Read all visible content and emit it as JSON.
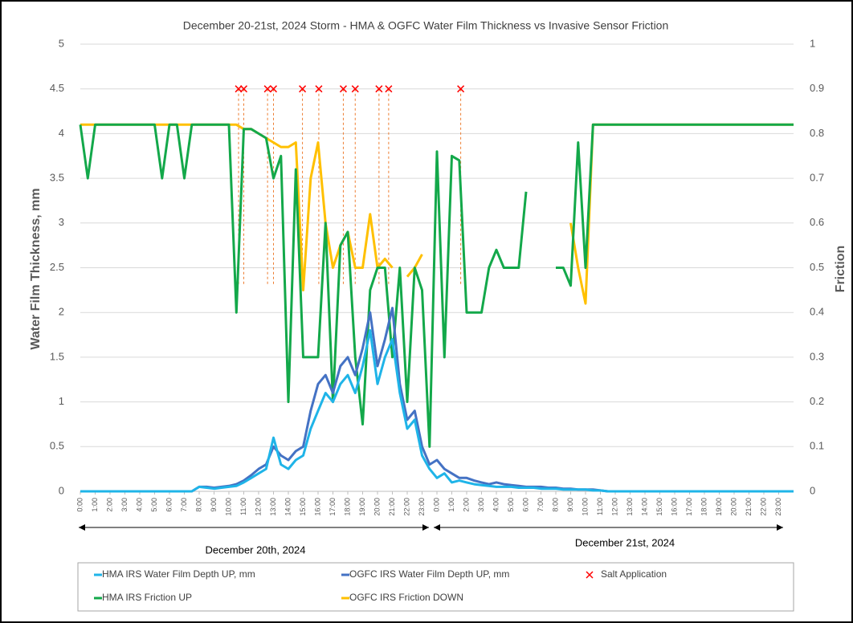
{
  "chart_data": {
    "type": "line",
    "title": "December 20-21st, 2024 Storm - HMA & OGFC Water Film Thickness vs Invasive Sensor Friction",
    "ylabel": "Water Film Thickness, mm",
    "y2label": "Friction",
    "annotations": [
      "December 20th, 2024",
      "December 21st, 2024"
    ],
    "x": [
      0,
      0.5,
      1,
      1.5,
      2,
      2.5,
      3,
      3.5,
      4,
      4.5,
      5,
      5.5,
      6,
      6.5,
      7,
      7.5,
      8,
      8.5,
      9,
      9.5,
      10,
      10.5,
      11,
      11.5,
      12,
      12.5,
      13,
      13.5,
      14,
      14.5,
      15,
      15.5,
      16,
      16.5,
      17,
      17.5,
      18,
      18.5,
      19,
      19.5,
      20,
      20.5,
      21,
      21.5,
      22,
      22.5,
      23,
      23.5,
      24,
      24.5,
      25,
      25.5,
      26,
      26.5,
      27,
      27.5,
      28,
      28.5,
      29,
      29.5,
      30,
      30.5,
      31,
      31.5,
      32,
      32.5,
      33,
      33.5,
      34,
      34.5,
      35,
      35.5,
      36,
      36.5,
      37,
      37.5,
      38,
      38.5,
      39,
      39.5,
      40,
      40.5,
      41,
      41.5,
      42,
      42.5,
      43,
      43.5,
      44,
      44.5,
      45,
      45.5,
      46,
      46.5,
      47,
      47.5,
      48
    ],
    "xlim": [
      0,
      48
    ],
    "xticks": [
      {
        "value": 0,
        "label": "0:00"
      },
      {
        "value": 1,
        "label": "1:00"
      },
      {
        "value": 2,
        "label": "2:00"
      },
      {
        "value": 3,
        "label": "3:00"
      },
      {
        "value": 4,
        "label": "4:00"
      },
      {
        "value": 5,
        "label": "5:00"
      },
      {
        "value": 6,
        "label": "6:00"
      },
      {
        "value": 7,
        "label": "7:00"
      },
      {
        "value": 8,
        "label": "8:00"
      },
      {
        "value": 9,
        "label": "9:00"
      },
      {
        "value": 10,
        "label": "10:00"
      },
      {
        "value": 11,
        "label": "11:00"
      },
      {
        "value": 12,
        "label": "12:00"
      },
      {
        "value": 13,
        "label": "13:00"
      },
      {
        "value": 14,
        "label": "14:00"
      },
      {
        "value": 15,
        "label": "15:00"
      },
      {
        "value": 16,
        "label": "16:00"
      },
      {
        "value": 17,
        "label": "17:00"
      },
      {
        "value": 18,
        "label": "18:00"
      },
      {
        "value": 19,
        "label": "19:00"
      },
      {
        "value": 20,
        "label": "20:00"
      },
      {
        "value": 21,
        "label": "21:00"
      },
      {
        "value": 22,
        "label": "22:00"
      },
      {
        "value": 23,
        "label": "23:00"
      },
      {
        "value": 24,
        "label": "0:00"
      },
      {
        "value": 25,
        "label": "1:00"
      },
      {
        "value": 26,
        "label": "2:00"
      },
      {
        "value": 27,
        "label": "3:00"
      },
      {
        "value": 28,
        "label": "4:00"
      },
      {
        "value": 29,
        "label": "5:00"
      },
      {
        "value": 30,
        "label": "6:00"
      },
      {
        "value": 31,
        "label": "7:00"
      },
      {
        "value": 32,
        "label": "8:00"
      },
      {
        "value": 33,
        "label": "9:00"
      },
      {
        "value": 34,
        "label": "10:00"
      },
      {
        "value": 35,
        "label": "11:00"
      },
      {
        "value": 36,
        "label": "12:00"
      },
      {
        "value": 37,
        "label": "13:00"
      },
      {
        "value": 38,
        "label": "14:00"
      },
      {
        "value": 39,
        "label": "15:00"
      },
      {
        "value": 40,
        "label": "16:00"
      },
      {
        "value": 41,
        "label": "17:00"
      },
      {
        "value": 42,
        "label": "18:00"
      },
      {
        "value": 43,
        "label": "19:00"
      },
      {
        "value": 44,
        "label": "20:00"
      },
      {
        "value": 45,
        "label": "21:00"
      },
      {
        "value": 46,
        "label": "22:00"
      },
      {
        "value": 47,
        "label": "23:00"
      }
    ],
    "ylim": [
      0,
      5
    ],
    "yticks": [
      0,
      0.5,
      1,
      1.5,
      2,
      2.5,
      3,
      3.5,
      4,
      4.5,
      5
    ],
    "y2lim": [
      0,
      1
    ],
    "y2ticks": [
      0,
      0.1,
      0.2,
      0.3,
      0.4,
      0.5,
      0.6,
      0.7,
      0.8,
      0.9,
      1
    ],
    "series": [
      {
        "name": "HMA IRS  Water Film Depth UP, mm",
        "color": "#1fb4e8",
        "values": [
          0,
          0,
          0,
          0,
          0,
          0,
          0,
          0,
          0,
          0,
          0,
          0,
          0,
          0,
          0,
          0,
          0.05,
          0.04,
          0.03,
          0.04,
          0.05,
          0.06,
          0.1,
          0.15,
          0.2,
          0.25,
          0.6,
          0.3,
          0.25,
          0.35,
          0.4,
          0.7,
          0.9,
          1.1,
          1.0,
          1.2,
          1.3,
          1.1,
          1.4,
          1.8,
          1.2,
          1.5,
          1.7,
          1.1,
          0.7,
          0.8,
          0.4,
          0.25,
          0.15,
          0.2,
          0.1,
          0.12,
          0.1,
          0.08,
          0.07,
          0.06,
          0.05,
          0.05,
          0.05,
          0.04,
          0.04,
          0.04,
          0.03,
          0.03,
          0.03,
          0.02,
          0.02,
          0.02,
          0.02,
          0.01,
          0.01,
          0,
          0,
          0,
          0,
          0,
          0,
          0,
          0,
          0,
          0,
          0,
          0,
          0,
          0,
          0,
          0,
          0,
          0,
          0,
          0,
          0,
          0,
          0,
          0,
          0,
          0
        ]
      },
      {
        "name": "OGFC IRS  Water Film Depth UP, mm",
        "color": "#4472c4",
        "values": [
          0,
          0,
          0,
          0,
          0,
          0,
          0,
          0,
          0,
          0,
          0,
          0,
          0,
          0,
          0,
          0,
          0.05,
          0.05,
          0.04,
          0.05,
          0.06,
          0.08,
          0.12,
          0.18,
          0.25,
          0.3,
          0.5,
          0.4,
          0.35,
          0.45,
          0.5,
          0.9,
          1.2,
          1.3,
          1.1,
          1.4,
          1.5,
          1.3,
          1.6,
          2.0,
          1.4,
          1.7,
          2.05,
          1.2,
          0.8,
          0.9,
          0.5,
          0.3,
          0.35,
          0.25,
          0.2,
          0.15,
          0.15,
          0.12,
          0.1,
          0.08,
          0.1,
          0.08,
          0.07,
          0.06,
          0.05,
          0.05,
          0.05,
          0.04,
          0.04,
          0.03,
          0.03,
          0.02,
          0.02,
          0.02,
          0.01,
          0,
          0,
          0,
          0,
          0,
          0,
          0,
          0,
          0,
          0,
          0,
          0,
          0,
          0,
          0,
          0,
          0,
          0,
          0,
          0,
          0,
          0,
          0,
          0,
          0,
          0
        ]
      },
      {
        "name": "HMA IRS Friction UP",
        "color": "#13a84a",
        "axis": "y2",
        "values": [
          0.82,
          0.7,
          0.82,
          0.82,
          0.82,
          0.82,
          0.82,
          0.82,
          0.82,
          0.82,
          0.82,
          0.7,
          0.82,
          0.82,
          0.7,
          0.82,
          0.82,
          0.82,
          0.82,
          0.82,
          0.82,
          0.4,
          0.81,
          0.81,
          0.8,
          0.79,
          0.7,
          0.75,
          0.2,
          0.72,
          0.3,
          0.3,
          0.3,
          0.6,
          0.2,
          0.55,
          0.58,
          0.3,
          0.15,
          0.45,
          0.5,
          0.5,
          0.3,
          0.5,
          0.2,
          0.5,
          0.45,
          0.1,
          0.76,
          0.3,
          0.75,
          0.74,
          0.4,
          0.4,
          0.4,
          0.5,
          0.54,
          0.5,
          0.5,
          0.5,
          0.67,
          null,
          null,
          null,
          0.5,
          0.5,
          0.46,
          0.78,
          0.5,
          0.82,
          0.82,
          0.82,
          0.82,
          0.82,
          0.82,
          0.82,
          0.82,
          0.82,
          0.82,
          0.82,
          0.82,
          0.82,
          0.82,
          0.82,
          0.82,
          0.82,
          0.82,
          0.82,
          0.82,
          0.82,
          0.82,
          0.82,
          0.82,
          0.82,
          0.82,
          0.82,
          0.82
        ]
      },
      {
        "name": "OGFC IRS Friction DOWN",
        "color": "#ffc000",
        "axis": "y2",
        "values": [
          0.82,
          0.82,
          0.82,
          0.82,
          0.82,
          0.82,
          0.82,
          0.82,
          0.82,
          0.82,
          0.82,
          0.82,
          0.82,
          0.82,
          0.82,
          0.82,
          0.82,
          0.82,
          0.82,
          0.82,
          0.82,
          0.82,
          0.81,
          0.81,
          0.8,
          0.79,
          0.78,
          0.77,
          0.77,
          0.78,
          0.45,
          0.7,
          0.78,
          0.6,
          0.5,
          0.55,
          0.58,
          0.5,
          0.5,
          0.62,
          0.5,
          0.52,
          0.5,
          null,
          0.48,
          0.5,
          0.53,
          null,
          null,
          null,
          null,
          null,
          null,
          null,
          null,
          null,
          null,
          null,
          null,
          null,
          null,
          null,
          null,
          null,
          null,
          null,
          0.6,
          0.5,
          0.42,
          0.82,
          0.82,
          0.82,
          0.82,
          0.82,
          0.82,
          0.82,
          0.82,
          0.82,
          0.82,
          0.82,
          0.82,
          0.82,
          0.82,
          0.82,
          0.82,
          0.82,
          0.82,
          0.82,
          0.82,
          0.82,
          0.82,
          0.82,
          0.82,
          0.82,
          0.82,
          0.82,
          0.82
        ]
      }
    ],
    "salt": {
      "name": "Salt Application",
      "color": "#ff0000",
      "x": [
        10.65,
        11,
        12.6,
        13,
        14.95,
        16.05,
        17.7,
        18.5,
        20.1,
        20.75,
        25.6
      ],
      "values": [
        4.5,
        4.5,
        4.5,
        4.5,
        4.5,
        4.5,
        4.5,
        4.5,
        4.5,
        4.5,
        4.5
      ]
    }
  }
}
